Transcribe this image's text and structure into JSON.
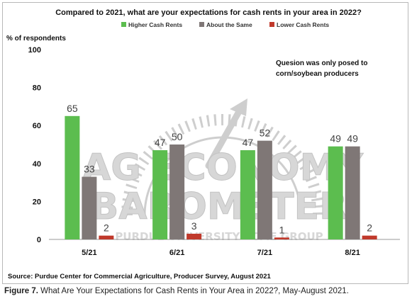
{
  "chart_data": {
    "type": "bar",
    "title": "Compared to 2021, what are your expectations for cash rents in your area in 2022?",
    "ylabel": "% of respondents",
    "xlabel": "",
    "ylim": [
      0,
      100
    ],
    "yticks": [
      0,
      20,
      40,
      60,
      80,
      100
    ],
    "categories": [
      "5/21",
      "6/21",
      "7/21",
      "8/21"
    ],
    "series": [
      {
        "name": "Higher Cash Rents",
        "color": "#5cbd4f",
        "values": [
          65,
          47,
          47,
          49
        ]
      },
      {
        "name": "About the Same",
        "color": "#7f7776",
        "values": [
          33,
          50,
          52,
          49
        ]
      },
      {
        "name": "Lower Cash Rents",
        "color": "#c0392b",
        "values": [
          2,
          3,
          1,
          2
        ]
      }
    ],
    "annotation": [
      "Quesion was only posed to",
      "corn/soybean producers"
    ],
    "grid": false,
    "legend_position": "top"
  },
  "source": "Source: Purdue Center for Commercial Agriculture, Producer Survey, August 2021",
  "watermark": [
    "AG ECONOMY",
    "BAROMETER",
    "PURDUE UNIVERSITY · CME GROUP"
  ],
  "caption": {
    "label": "Figure 7.",
    "text": " What Are Your Expectations for Cash Rents in Your Area in 2022?, May-August 2021."
  }
}
